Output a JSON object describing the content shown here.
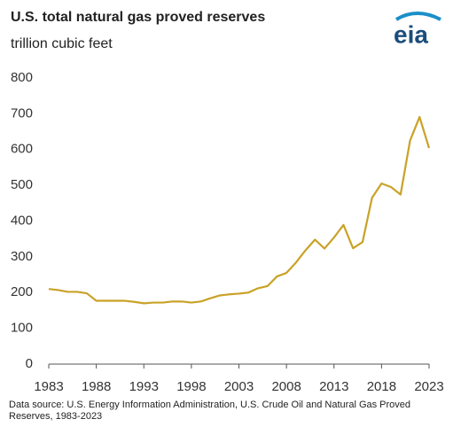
{
  "chart_data": {
    "type": "line",
    "title": "U.S. total natural gas proved reserves",
    "subtitle": "trillion cubic feet",
    "logo": "eia",
    "source": "Data source: U.S. Energy Information Administration, U.S. Crude Oil and Natural Gas Proved Reserves, 1983-2023",
    "x": [
      1983,
      1984,
      1985,
      1986,
      1987,
      1988,
      1989,
      1990,
      1991,
      1992,
      1993,
      1994,
      1995,
      1996,
      1997,
      1998,
      1999,
      2000,
      2001,
      2002,
      2003,
      2004,
      2005,
      2006,
      2007,
      2008,
      2009,
      2010,
      2011,
      2012,
      2013,
      2014,
      2015,
      2016,
      2017,
      2018,
      2019,
      2020,
      2021,
      2022,
      2023
    ],
    "series": [
      {
        "name": "U.S. total natural gas proved reserves",
        "color": "#c9a227",
        "values": [
          210,
          207,
          202,
          202,
          198,
          177,
          177,
          177,
          177,
          174,
          170,
          172,
          172,
          175,
          175,
          172,
          175,
          184,
          192,
          195,
          197,
          200,
          212,
          218,
          245,
          255,
          284,
          318,
          348,
          323,
          354,
          389,
          324,
          341,
          465,
          505,
          495,
          474,
          625,
          691,
          604
        ]
      }
    ],
    "xlim": [
      1983,
      2023
    ],
    "xticks": [
      1983,
      1988,
      1993,
      1998,
      2003,
      2008,
      2013,
      2018,
      2023
    ],
    "ylim": [
      0,
      800
    ],
    "yticks": [
      0,
      100,
      200,
      300,
      400,
      500,
      600,
      700,
      800
    ],
    "grid": false
  }
}
